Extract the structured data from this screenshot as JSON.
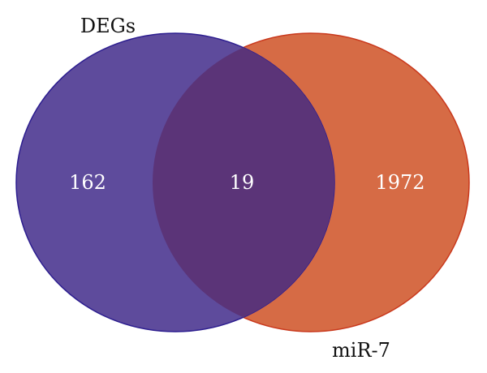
{
  "diagram": {
    "type": "venn",
    "sets": [
      {
        "label": "DEGs",
        "fill": "#5e4b9c",
        "stroke": "#2c1d8f"
      },
      {
        "label": "miR-7",
        "fill": "#d66b45",
        "stroke": "#c9381c"
      }
    ],
    "intersection_fill": "#5b3478",
    "counts": {
      "only_first": "162",
      "both": "19",
      "only_second": "1972"
    }
  }
}
